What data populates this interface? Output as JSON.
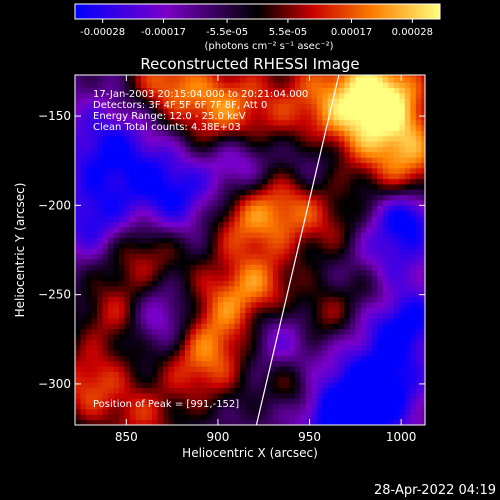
{
  "chart_data": {
    "type": "heatmap",
    "title": "Reconstructed RHESSI Image",
    "xlabel": "Heliocentric X (arcsec)",
    "ylabel": "Heliocentric Y (arcsec)",
    "xlim": [
      822,
      1013
    ],
    "ylim": [
      -323,
      -127
    ],
    "x_ticks": [
      850,
      900,
      950,
      1000
    ],
    "y_ticks": [
      -150,
      -200,
      -250,
      -300
    ],
    "colorbar": {
      "ticks": [
        "-0.00028",
        "-0.00017",
        "-5.5e-05",
        "5.5e-05",
        "0.00017",
        "0.00028"
      ],
      "tick_values": [
        -0.00028,
        -0.00017,
        -5.5e-05,
        5.5e-05,
        0.00017,
        0.00028
      ],
      "unit_label": "(photons cm⁻² s⁻¹ asec⁻²)",
      "colors": [
        "#0000ff",
        "#7a00c8",
        "#000000",
        "#c80000",
        "#ff8000",
        "#ffff80"
      ]
    },
    "annotations": [
      "17-Jan-2003 20:15:04.000 to 20:21:04.000",
      "Detectors: 3F 4F 5F 6F 7F 8F, Att 0",
      "Energy Range: 12.0 - 25.0 keV",
      "Clean    Total counts: 4.38E+03"
    ],
    "peak_label": "Position of Peak = [991,-152]",
    "limb_line": [
      [
        921,
        -323
      ],
      [
        966,
        -127
      ]
    ],
    "hot_regions": [
      {
        "x": 960,
        "y": -150,
        "r": 28,
        "v": 0.8
      },
      {
        "x": 990,
        "y": -140,
        "r": 18,
        "v": 1.0
      },
      {
        "x": 1005,
        "y": -175,
        "r": 16,
        "v": 0.7
      },
      {
        "x": 870,
        "y": -130,
        "r": 14,
        "v": 0.7
      },
      {
        "x": 900,
        "y": -145,
        "r": 18,
        "v": 0.8
      },
      {
        "x": 912,
        "y": -210,
        "r": 14,
        "v": 0.6
      },
      {
        "x": 938,
        "y": -202,
        "r": 16,
        "v": 0.7
      },
      {
        "x": 860,
        "y": -225,
        "r": 16,
        "v": 0.6
      },
      {
        "x": 845,
        "y": -260,
        "r": 14,
        "v": 0.55
      },
      {
        "x": 905,
        "y": -262,
        "r": 20,
        "v": 0.85
      },
      {
        "x": 925,
        "y": -245,
        "r": 14,
        "v": 0.6
      },
      {
        "x": 890,
        "y": -290,
        "r": 16,
        "v": 0.6
      },
      {
        "x": 830,
        "y": -300,
        "r": 16,
        "v": 0.7
      },
      {
        "x": 860,
        "y": -320,
        "r": 14,
        "v": 0.5
      },
      {
        "x": 970,
        "y": -215,
        "r": 14,
        "v": 0.5
      },
      {
        "x": 958,
        "y": -262,
        "r": 12,
        "v": 0.5
      },
      {
        "x": 985,
        "y": -248,
        "r": 12,
        "v": 0.45
      },
      {
        "x": 940,
        "y": -300,
        "r": 10,
        "v": 0.4
      }
    ],
    "cold_regions": [
      {
        "x": 840,
        "y": -170,
        "r": 20,
        "v": -0.7
      },
      {
        "x": 875,
        "y": -195,
        "r": 18,
        "v": -0.75
      },
      {
        "x": 832,
        "y": -210,
        "r": 14,
        "v": -0.6
      },
      {
        "x": 930,
        "y": -270,
        "r": 16,
        "v": -0.65
      },
      {
        "x": 990,
        "y": -220,
        "r": 18,
        "v": -0.7
      },
      {
        "x": 1000,
        "y": -265,
        "r": 16,
        "v": -0.8
      },
      {
        "x": 985,
        "y": -305,
        "r": 18,
        "v": -1.0
      },
      {
        "x": 950,
        "y": -175,
        "r": 14,
        "v": -0.6
      },
      {
        "x": 870,
        "y": -262,
        "r": 14,
        "v": -0.65
      },
      {
        "x": 965,
        "y": -320,
        "r": 14,
        "v": -0.7
      },
      {
        "x": 912,
        "y": -175,
        "r": 12,
        "v": -0.55
      },
      {
        "x": 1005,
        "y": -205,
        "r": 10,
        "v": -0.55
      }
    ]
  },
  "footer_timestamp": "28-Apr-2022 04:19"
}
